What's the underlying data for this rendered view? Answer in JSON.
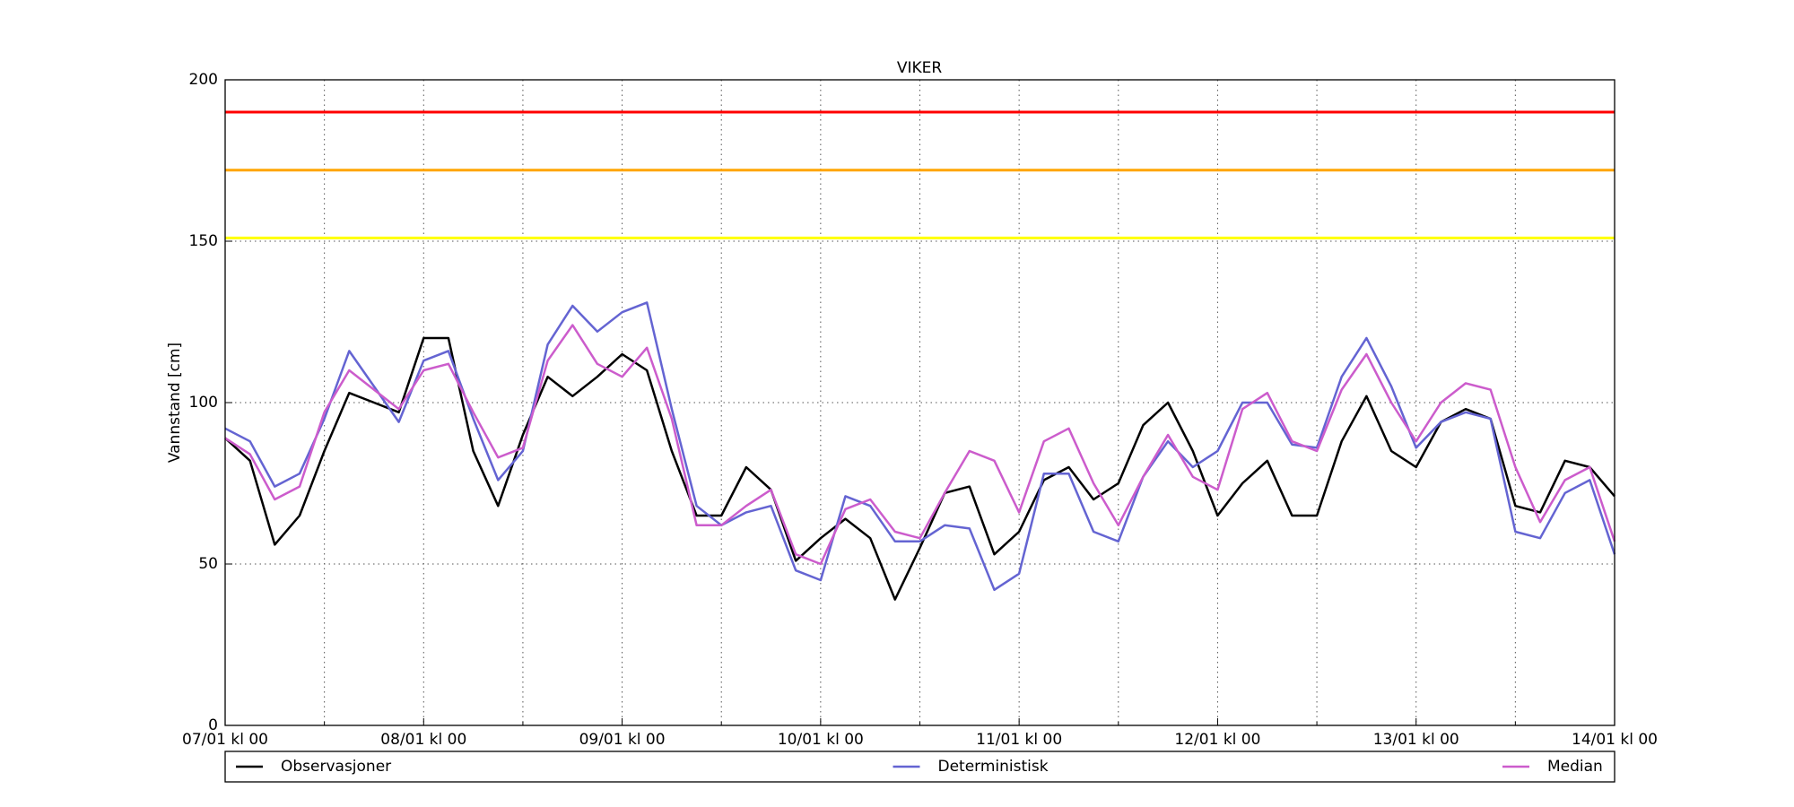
{
  "chart_data": {
    "type": "line",
    "title": "VIKER",
    "y_label": "Vannstand [cm]",
    "x": [
      0,
      3,
      6,
      9,
      12,
      15,
      18,
      21,
      24,
      27,
      30,
      33,
      36,
      39,
      42,
      45,
      48,
      51,
      54,
      57,
      60,
      63,
      66,
      69,
      72,
      75,
      78,
      81,
      84,
      87,
      90,
      93,
      96,
      99,
      102,
      105,
      108,
      111,
      114,
      117,
      120,
      123,
      126,
      129,
      132,
      135,
      138,
      141,
      144,
      147,
      150,
      153,
      156,
      159,
      162,
      165,
      168
    ],
    "series": [
      {
        "name": "Observasjoner",
        "color": "#000000",
        "values": [
          89,
          82,
          56,
          65,
          85,
          103,
          100,
          97,
          120,
          120,
          85,
          68,
          90,
          108,
          102,
          108,
          115,
          110,
          85,
          65,
          65,
          80,
          73,
          51,
          58,
          64,
          58,
          39,
          55,
          72,
          74,
          53,
          60,
          76,
          80,
          70,
          75,
          93,
          100,
          85,
          65,
          75,
          82,
          65,
          65,
          88,
          102,
          85,
          80,
          94,
          98,
          95,
          68,
          66,
          82,
          80,
          71
        ]
      },
      {
        "name": "Deterministisk",
        "color": "#6464d2",
        "values": [
          92,
          88,
          74,
          78,
          95,
          116,
          105,
          94,
          113,
          116,
          95,
          76,
          85,
          118,
          130,
          122,
          128,
          131,
          98,
          68,
          62,
          66,
          68,
          48,
          45,
          71,
          68,
          57,
          57,
          62,
          61,
          42,
          47,
          78,
          78,
          60,
          57,
          77,
          88,
          80,
          85,
          100,
          100,
          87,
          86,
          108,
          120,
          105,
          86,
          94,
          97,
          95,
          60,
          58,
          72,
          76,
          53
        ]
      },
      {
        "name": "Median",
        "color": "#cc5ccc",
        "values": [
          89,
          84,
          70,
          74,
          97,
          110,
          104,
          98,
          110,
          112,
          97,
          83,
          86,
          113,
          124,
          112,
          108,
          117,
          95,
          62,
          62,
          68,
          73,
          53,
          50,
          67,
          70,
          60,
          58,
          72,
          85,
          82,
          66,
          88,
          92,
          75,
          62,
          77,
          90,
          77,
          73,
          98,
          103,
          88,
          85,
          104,
          115,
          100,
          88,
          100,
          106,
          104,
          80,
          63,
          76,
          80,
          57
        ]
      }
    ],
    "thresholds": [
      {
        "value": 190,
        "color": "#ff0000"
      },
      {
        "value": 172,
        "color": "#ffa500"
      },
      {
        "value": 151,
        "color": "#ffff00"
      }
    ],
    "xlim": [
      0,
      168
    ],
    "xticks": [
      {
        "value": 0,
        "label": "07/01 kl 00"
      },
      {
        "value": 24,
        "label": "08/01 kl 00"
      },
      {
        "value": 48,
        "label": "09/01 kl 00"
      },
      {
        "value": 72,
        "label": "10/01 kl 00"
      },
      {
        "value": 96,
        "label": "11/01 kl 00"
      },
      {
        "value": 120,
        "label": "12/01 kl 00"
      },
      {
        "value": 144,
        "label": "13/01 kl 00"
      },
      {
        "value": 168,
        "label": "14/01 kl 00"
      }
    ],
    "xminorticks": [
      12,
      36,
      60,
      84,
      108,
      132,
      156
    ],
    "ylim": [
      0,
      200
    ],
    "yticks": [
      0,
      50,
      100,
      150,
      200
    ],
    "grid": true
  }
}
